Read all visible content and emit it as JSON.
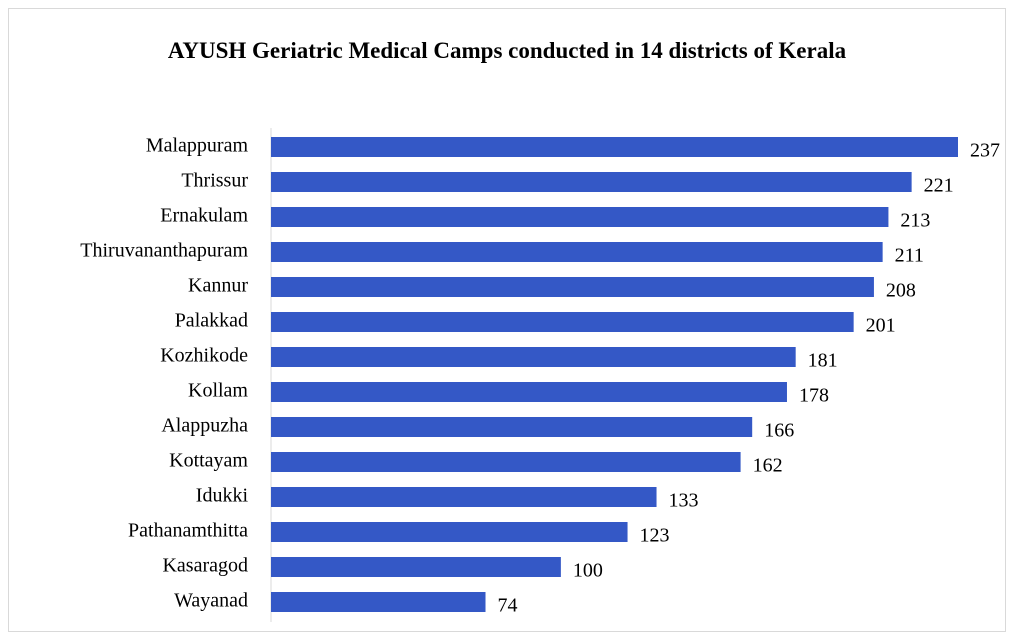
{
  "chart_data": {
    "type": "bar",
    "orientation": "horizontal",
    "title": "AYUSH Geriatric Medical Camps conducted in 14 districts of Kerala",
    "categories": [
      "Malappuram",
      "Thrissur",
      "Ernakulam",
      "Thiruvananthapuram",
      "Kannur",
      "Palakkad",
      "Kozhikode",
      "Kollam",
      "Alappuzha",
      "Kottayam",
      "Idukki",
      "Pathanamthitta",
      "Kasaragod",
      "Wayanad"
    ],
    "values": [
      237,
      221,
      213,
      211,
      208,
      201,
      181,
      178,
      166,
      162,
      133,
      123,
      100,
      74
    ],
    "color": "#3458c6"
  }
}
